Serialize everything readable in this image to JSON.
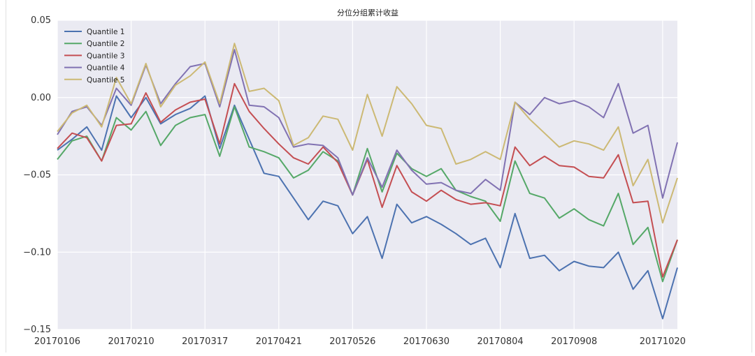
{
  "chart_data": {
    "type": "line",
    "title": "分位分组累计收益",
    "xlabel": "",
    "ylabel": "",
    "x": [
      "20170106",
      "20170113",
      "20170120",
      "20170127",
      "20170203",
      "20170210",
      "20170217",
      "20170224",
      "20170303",
      "20170310",
      "20170317",
      "20170324",
      "20170331",
      "20170407",
      "20170414",
      "20170421",
      "20170428",
      "20170505",
      "20170512",
      "20170519",
      "20170526",
      "20170602",
      "20170609",
      "20170616",
      "20170623",
      "20170630",
      "20170707",
      "20170714",
      "20170721",
      "20170728",
      "20170804",
      "20170811",
      "20170818",
      "20170825",
      "20170901",
      "20170908",
      "20170915",
      "20170922",
      "20170929",
      "20171006",
      "20171013",
      "20171020",
      "20171027"
    ],
    "x_tick_labels": [
      "20170106",
      "20170210",
      "20170317",
      "20170421",
      "20170526",
      "20170630",
      "20170804",
      "20170908",
      "20171020"
    ],
    "y_ticks": [
      "0.05",
      "0.00",
      "−0.05",
      "−0.10",
      "−0.15"
    ],
    "ylim": [
      -0.15,
      0.05
    ],
    "grid": true,
    "legend_position": "top-left",
    "series": [
      {
        "name": "Quantile 1",
        "color": "#4c72b0",
        "values": [
          -0.034,
          -0.027,
          -0.019,
          -0.034,
          0.001,
          -0.013,
          0.0,
          -0.017,
          -0.011,
          -0.007,
          0.001,
          -0.033,
          -0.005,
          -0.027,
          -0.049,
          -0.051,
          -0.065,
          -0.079,
          -0.067,
          -0.07,
          -0.088,
          -0.077,
          -0.104,
          -0.069,
          -0.081,
          -0.077,
          -0.082,
          -0.088,
          -0.095,
          -0.091,
          -0.11,
          -0.075,
          -0.104,
          -0.102,
          -0.112,
          -0.106,
          -0.109,
          -0.11,
          -0.1,
          -0.124,
          -0.112,
          -0.143,
          -0.11
        ]
      },
      {
        "name": "Quantile 2",
        "color": "#55a868",
        "values": [
          -0.04,
          -0.028,
          -0.025,
          -0.041,
          -0.013,
          -0.021,
          -0.009,
          -0.031,
          -0.018,
          -0.013,
          -0.011,
          -0.038,
          -0.006,
          -0.032,
          -0.035,
          -0.039,
          -0.052,
          -0.047,
          -0.035,
          -0.041,
          -0.063,
          -0.033,
          -0.061,
          -0.036,
          -0.046,
          -0.051,
          -0.046,
          -0.06,
          -0.064,
          -0.067,
          -0.08,
          -0.041,
          -0.062,
          -0.065,
          -0.078,
          -0.072,
          -0.079,
          -0.083,
          -0.062,
          -0.095,
          -0.084,
          -0.119,
          -0.092
        ]
      },
      {
        "name": "Quantile 3",
        "color": "#c44e52",
        "values": [
          -0.033,
          -0.023,
          -0.026,
          -0.041,
          -0.018,
          -0.017,
          0.003,
          -0.016,
          -0.008,
          -0.003,
          -0.001,
          -0.03,
          0.009,
          -0.009,
          -0.02,
          -0.03,
          -0.039,
          -0.043,
          -0.032,
          -0.042,
          -0.063,
          -0.04,
          -0.071,
          -0.044,
          -0.061,
          -0.067,
          -0.06,
          -0.066,
          -0.069,
          -0.068,
          -0.07,
          -0.032,
          -0.044,
          -0.038,
          -0.044,
          -0.045,
          -0.051,
          -0.052,
          -0.037,
          -0.068,
          -0.067,
          -0.116,
          -0.092
        ]
      },
      {
        "name": "Quantile 4",
        "color": "#8172b2",
        "values": [
          -0.024,
          -0.009,
          -0.006,
          -0.018,
          0.006,
          -0.005,
          0.021,
          -0.004,
          0.009,
          0.02,
          0.022,
          -0.006,
          0.031,
          -0.005,
          -0.006,
          -0.013,
          -0.032,
          -0.03,
          -0.031,
          -0.039,
          -0.063,
          -0.039,
          -0.058,
          -0.034,
          -0.047,
          -0.056,
          -0.055,
          -0.06,
          -0.062,
          -0.053,
          -0.06,
          -0.003,
          -0.011,
          0.0,
          -0.004,
          -0.002,
          -0.006,
          -0.013,
          0.009,
          -0.023,
          -0.018,
          -0.065,
          -0.029
        ]
      },
      {
        "name": "Quantile 5",
        "color": "#ccb974",
        "values": [
          -0.022,
          -0.01,
          -0.005,
          -0.019,
          0.013,
          -0.004,
          0.022,
          -0.006,
          0.008,
          0.014,
          0.023,
          -0.004,
          0.035,
          0.004,
          0.006,
          -0.002,
          -0.031,
          -0.026,
          -0.012,
          -0.014,
          -0.034,
          0.002,
          -0.025,
          0.007,
          -0.004,
          -0.018,
          -0.02,
          -0.043,
          -0.04,
          -0.035,
          -0.04,
          -0.003,
          -0.014,
          -0.023,
          -0.032,
          -0.028,
          -0.03,
          -0.034,
          -0.019,
          -0.057,
          -0.04,
          -0.081,
          -0.052
        ]
      }
    ]
  }
}
